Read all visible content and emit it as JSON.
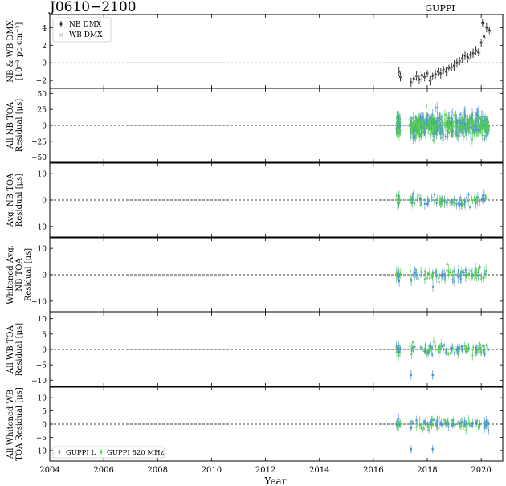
{
  "chart_data": {
    "type": "scatter",
    "title": "J0610−2100",
    "subtitle": "GUPPI",
    "xlabel": "Year",
    "xlim": [
      2004,
      2020.8
    ],
    "xticks": [
      2004,
      2006,
      2008,
      2010,
      2012,
      2014,
      2016,
      2018,
      2020
    ],
    "legend_top": [
      "NB DMX",
      "WB DMX"
    ],
    "legend_bottom": [
      "GUPPI L",
      "GUPPI 820 MHz"
    ],
    "colors": {
      "nb_dmx": "#222222",
      "wb_dmx": "#aaaaaa",
      "guppi_l": "#4a90d9",
      "guppi_820": "#55cc55"
    },
    "panels": [
      {
        "ylabel": [
          "NB & WB DMX",
          "[10⁻³ pc cm⁻³]"
        ],
        "ylim": [
          -2.9,
          5.5
        ],
        "yticks": [
          -2,
          0,
          2,
          4
        ],
        "kind": "dmx"
      },
      {
        "ylabel": [
          "All NB TOA",
          "Residual [μs]"
        ],
        "ylim": [
          -58,
          58
        ],
        "yticks": [
          -50,
          -25,
          0,
          25,
          50
        ],
        "kind": "nb_all"
      },
      {
        "ylabel": [
          "Avg. NB TOA",
          "Residual [μs]"
        ],
        "ylim": [
          -14,
          14
        ],
        "yticks": [
          -10,
          0,
          10
        ],
        "kind": "nb_avg"
      },
      {
        "ylabel": [
          "Whitened Avg.",
          "NB TOA",
          "Residual [μs]"
        ],
        "ylim": [
          -14,
          14
        ],
        "yticks": [
          -10,
          0,
          10
        ],
        "kind": "nb_white"
      },
      {
        "ylabel": [
          "All WB TOA",
          "Residual [μs]"
        ],
        "ylim": [
          -12,
          12
        ],
        "yticks": [
          -10,
          -5,
          0,
          5,
          10
        ],
        "kind": "wb_all"
      },
      {
        "ylabel": [
          "All Whitened WB",
          "TOA Residual [μs]"
        ],
        "ylim": [
          -14,
          14
        ],
        "yticks": [
          -10,
          -5,
          0,
          5,
          10
        ],
        "kind": "wb_white"
      }
    ],
    "dmx_series": {
      "name": "NB DMX",
      "x": [
        2016.95,
        2017.0,
        2017.4,
        2017.5,
        2017.6,
        2017.7,
        2017.8,
        2017.9,
        2018.0,
        2018.1,
        2018.2,
        2018.3,
        2018.4,
        2018.5,
        2018.6,
        2018.7,
        2018.8,
        2018.9,
        2019.0,
        2019.1,
        2019.2,
        2019.3,
        2019.4,
        2019.5,
        2019.6,
        2019.7,
        2019.8,
        2019.9,
        2020.0,
        2020.05,
        2020.1,
        2020.2,
        2020.3
      ],
      "y": [
        -1.0,
        -1.6,
        -2.2,
        -1.8,
        -1.5,
        -1.9,
        -1.4,
        -1.6,
        -1.2,
        -2.0,
        -1.5,
        -1.3,
        -1.0,
        -1.2,
        -0.8,
        -1.0,
        -0.6,
        -0.5,
        -0.3,
        0.0,
        0.2,
        0.5,
        0.8,
        0.6,
        0.9,
        1.1,
        1.4,
        1.2,
        2.3,
        4.5,
        3.0,
        4.0,
        3.7
      ]
    }
  }
}
